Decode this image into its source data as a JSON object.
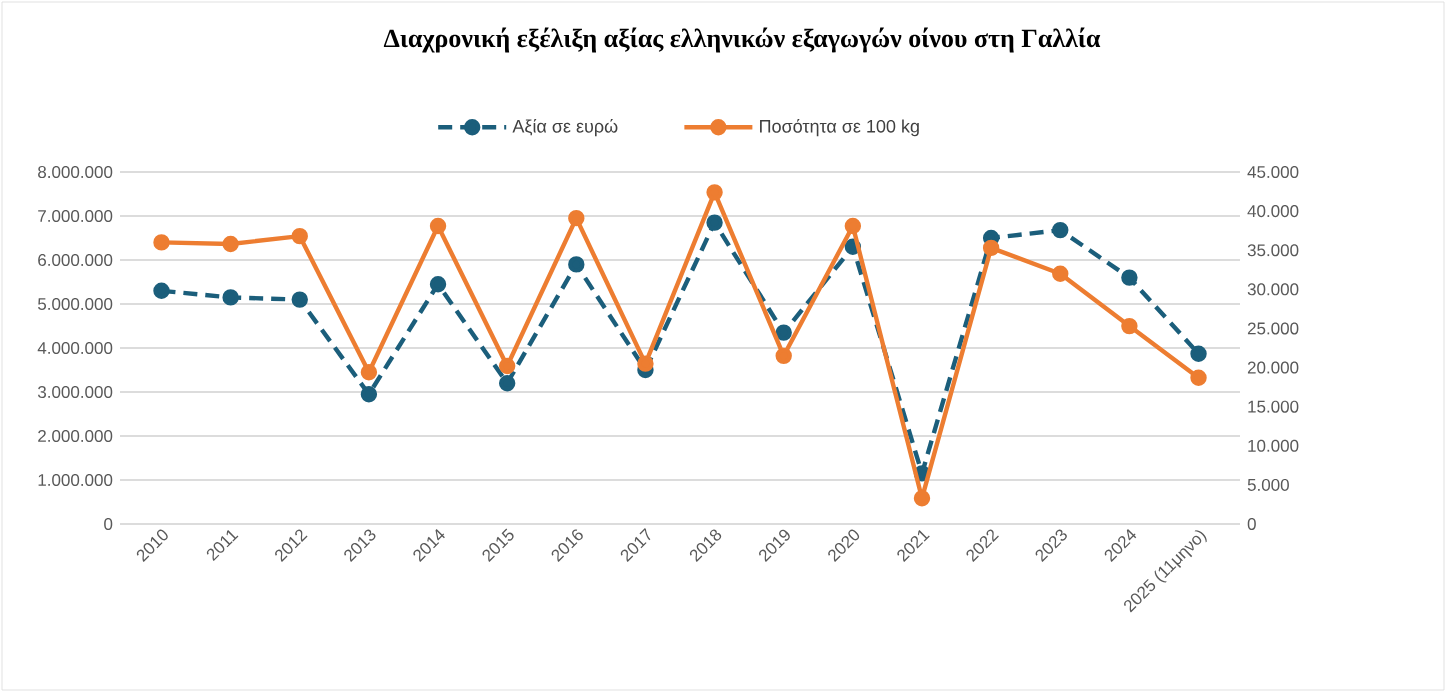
{
  "chart_data": {
    "type": "line",
    "title": "Διαχρονική εξέλιξη αξίας  ελληνικών εξαγωγών οίνου στη Γαλλία",
    "categories": [
      "2010",
      "2011",
      "2012",
      "2013",
      "2014",
      "2015",
      "2016",
      "2017",
      "2018",
      "2019",
      "2020",
      "2021",
      "2022",
      "2023",
      "2024",
      "2025 (11μηνο)"
    ],
    "series": [
      {
        "name": "Αξία σε ευρώ",
        "color": "#1b5e7b",
        "line_style": "dashed",
        "marker": "circle",
        "values": [
          5300000,
          5150000,
          5100000,
          2950000,
          5450000,
          3200000,
          5900000,
          3500000,
          6850000,
          4350000,
          6300000,
          1150000,
          6500000,
          6680000,
          5600000,
          3870000
        ]
      },
      {
        "name": "Ποσότητα σε 100 kg",
        "color": "#ed7d31",
        "line_style": "solid",
        "marker": "circle",
        "axis": "y2",
        "values": [
          36000,
          35800,
          36800,
          19400,
          38100,
          20200,
          39100,
          20500,
          42400,
          21500,
          38100,
          3300,
          35300,
          32000,
          25300,
          18700
        ]
      }
    ],
    "ylim": [
      0,
      8000000
    ],
    "yticks": [
      {
        "value": 0,
        "label": "0"
      },
      {
        "value": 1000000,
        "label": "1.000.000"
      },
      {
        "value": 2000000,
        "label": "2.000.000"
      },
      {
        "value": 3000000,
        "label": "3.000.000"
      },
      {
        "value": 4000000,
        "label": "4.000.000"
      },
      {
        "value": 5000000,
        "label": "5.000.000"
      },
      {
        "value": 6000000,
        "label": "6.000.000"
      },
      {
        "value": 7000000,
        "label": "7.000.000"
      },
      {
        "value": 8000000,
        "label": "8.000.000"
      }
    ],
    "y2lim": [
      0,
      45000
    ],
    "y2ticks": [
      {
        "value": 0,
        "label": "0"
      },
      {
        "value": 5000,
        "label": "5.000"
      },
      {
        "value": 10000,
        "label": "10.000"
      },
      {
        "value": 15000,
        "label": "15.000"
      },
      {
        "value": 20000,
        "label": "20.000"
      },
      {
        "value": 25000,
        "label": "25.000"
      },
      {
        "value": 30000,
        "label": "30.000"
      },
      {
        "value": 35000,
        "label": "35.000"
      },
      {
        "value": 40000,
        "label": "40.000"
      },
      {
        "value": 45000,
        "label": "45.000"
      }
    ],
    "grid": "y",
    "legend": "top"
  }
}
